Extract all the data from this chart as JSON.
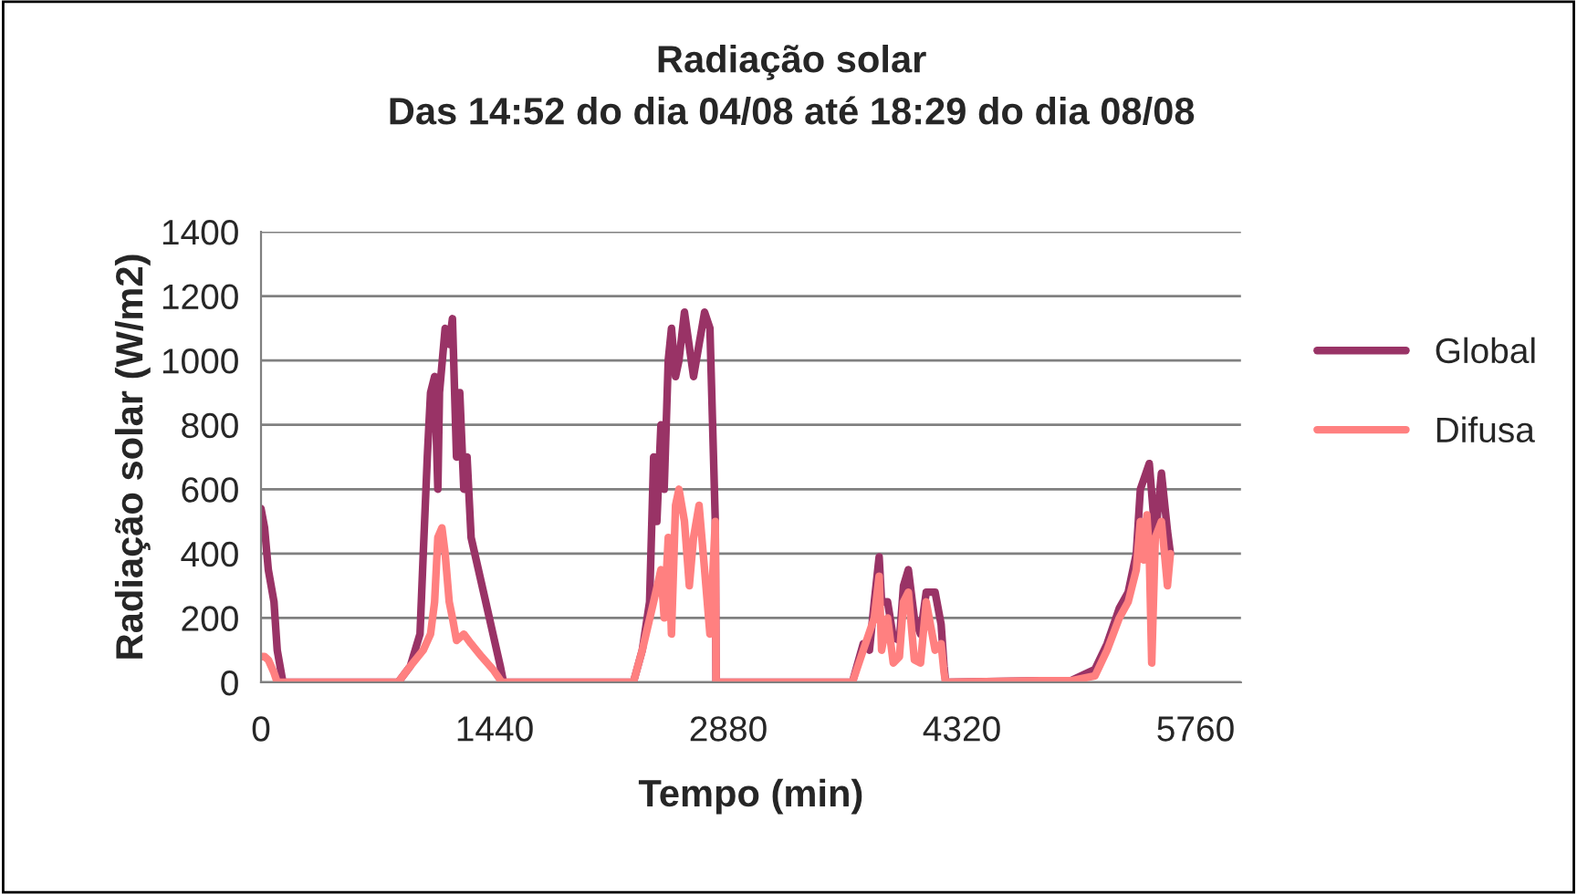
{
  "chart_data": {
    "type": "line",
    "title": "Radiação solar\nDas 14:52 do dia 04/08 até 18:29 do dia 08/08",
    "xlabel": "Tempo (min)",
    "ylabel": "Radiação solar (W/m2)",
    "xlim": [
      0,
      6040
    ],
    "xticks": [
      0,
      1440,
      2880,
      4320,
      5760
    ],
    "ylim": [
      0,
      1400
    ],
    "yticks": [
      0,
      200,
      400,
      600,
      800,
      1000,
      1200,
      1400
    ],
    "grid": "y",
    "legend": "right",
    "marker": "none",
    "line_style": "solid",
    "series": [
      {
        "name": "Global",
        "color": "#993366",
        "x": [
          0,
          22,
          45,
          80,
          100,
          135,
          845,
          920,
          980,
          1000,
          1025,
          1045,
          1070,
          1090,
          1100,
          1135,
          1160,
          1180,
          1205,
          1225,
          1250,
          1270,
          1295,
          1340,
          1385,
          1430,
          1475,
          1495,
          2295,
          2350,
          2395,
          2420,
          2440,
          2465,
          2485,
          2510,
          2530,
          2555,
          2576,
          2610,
          2666,
          2734,
          2767,
          2800,
          2805,
          3645,
          3712,
          3750,
          3780,
          3810,
          3825,
          3862,
          3897,
          3935,
          3960,
          3990,
          4027,
          4065,
          4100,
          4155,
          4192,
          4210,
          4220,
          4804,
          4990,
          5140,
          5215,
          5290,
          5345,
          5395,
          5420,
          5475,
          5512,
          5550,
          5587,
          5605
        ],
        "values": [
          540,
          480,
          350,
          250,
          100,
          0,
          0,
          50,
          150,
          400,
          700,
          900,
          950,
          600,
          900,
          1100,
          1050,
          1130,
          700,
          900,
          600,
          700,
          450,
          350,
          250,
          150,
          50,
          0,
          0,
          100,
          250,
          700,
          500,
          800,
          600,
          1000,
          1100,
          950,
          1000,
          1150,
          950,
          1150,
          1100,
          500,
          0,
          0,
          120,
          100,
          250,
          390,
          250,
          250,
          140,
          130,
          300,
          350,
          200,
          150,
          280,
          280,
          180,
          50,
          0,
          5,
          5,
          40,
          120,
          230,
          280,
          400,
          600,
          680,
          450,
          650,
          470,
          400
        ]
      },
      {
        "name": "Difusa",
        "color": "#ff8080",
        "x": [
          0,
          22,
          45,
          80,
          100,
          845,
          920,
          1000,
          1045,
          1070,
          1090,
          1115,
          1135,
          1160,
          1180,
          1205,
          1250,
          1295,
          1360,
          1430,
          1485,
          2295,
          2350,
          2420,
          2465,
          2485,
          2510,
          2530,
          2555,
          2576,
          2610,
          2640,
          2666,
          2700,
          2734,
          2767,
          2800,
          2805,
          3645,
          3712,
          3780,
          3810,
          3825,
          3862,
          3897,
          3935,
          3960,
          3990,
          4027,
          4065,
          4100,
          4155,
          4192,
          4210,
          4220,
          4804,
          4990,
          5140,
          5215,
          5290,
          5345,
          5395,
          5420,
          5440,
          5460,
          5475,
          5490,
          5512,
          5550,
          5587,
          5605
        ],
        "values": [
          80,
          80,
          70,
          30,
          0,
          0,
          50,
          100,
          150,
          250,
          450,
          480,
          400,
          250,
          200,
          130,
          150,
          120,
          80,
          40,
          0,
          0,
          100,
          250,
          350,
          200,
          450,
          150,
          550,
          600,
          500,
          300,
          450,
          550,
          350,
          150,
          500,
          0,
          0,
          100,
          200,
          330,
          100,
          200,
          60,
          80,
          250,
          280,
          70,
          60,
          250,
          100,
          120,
          30,
          0,
          5,
          5,
          20,
          100,
          200,
          250,
          350,
          500,
          380,
          520,
          400,
          60,
          450,
          500,
          300,
          400
        ]
      }
    ]
  }
}
